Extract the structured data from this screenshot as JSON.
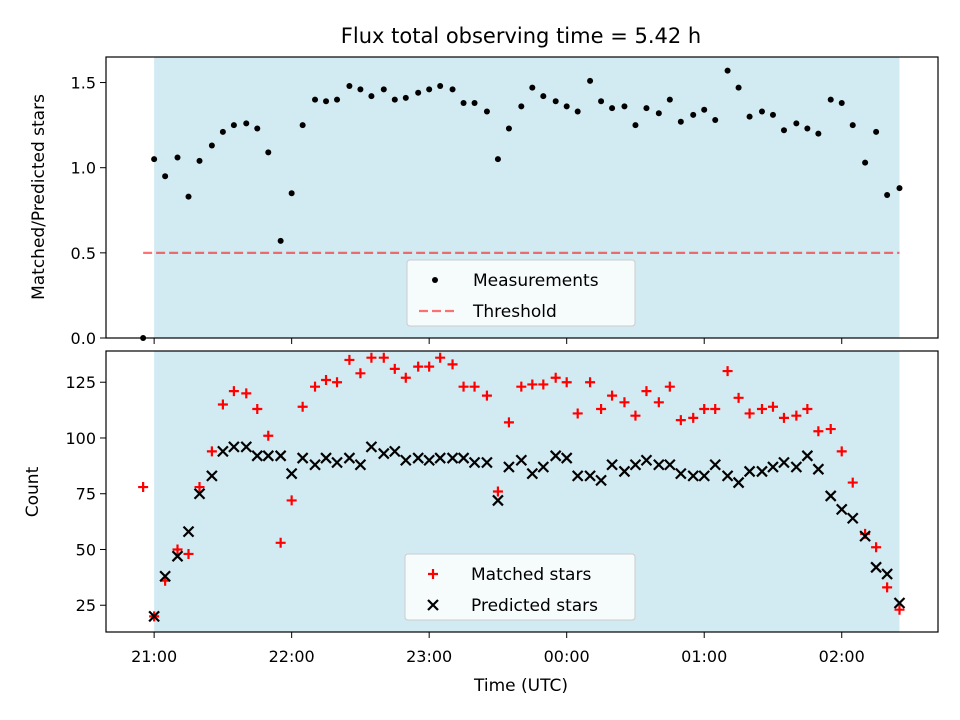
{
  "title": "Flux total observing time = 5.42 h",
  "colors": {
    "shade": "#add8e6",
    "threshold": "#ff0000",
    "matched": "#ff0000",
    "predicted": "#000000",
    "measurements": "#000000"
  },
  "x_axis": {
    "label": "Time (UTC)",
    "ticks": [
      "21:00",
      "22:00",
      "23:00",
      "00:00",
      "01:00",
      "02:00"
    ]
  },
  "chart_data": [
    {
      "type": "scatter",
      "ylabel": "Matched/Predicted stars",
      "xlim": [
        20.65,
        26.7
      ],
      "ylim": [
        0,
        1.65
      ],
      "yticks": [
        "0.0",
        "0.5",
        "1.0",
        "1.5"
      ],
      "shaded_interval": [
        21.0,
        26.42
      ],
      "threshold": {
        "name": "Threshold",
        "value": 0.5,
        "x_range": [
          20.92,
          26.42
        ]
      },
      "legend": {
        "position": "lower center",
        "entries": [
          "Measurements",
          "Threshold"
        ]
      },
      "series": [
        {
          "name": "Measurements",
          "marker": "dot",
          "x": [
            20.92,
            21.0,
            21.08,
            21.17,
            21.25,
            21.33,
            21.42,
            21.5,
            21.58,
            21.67,
            21.75,
            21.83,
            21.92,
            22.0,
            22.08,
            22.17,
            22.25,
            22.33,
            22.42,
            22.5,
            22.58,
            22.67,
            22.75,
            22.83,
            22.92,
            23.0,
            23.08,
            23.17,
            23.25,
            23.33,
            23.42,
            23.5,
            23.58,
            23.67,
            23.75,
            23.83,
            23.92,
            24.0,
            24.08,
            24.17,
            24.25,
            24.33,
            24.42,
            24.5,
            24.58,
            24.67,
            24.75,
            24.83,
            24.92,
            25.0,
            25.08,
            25.17,
            25.25,
            25.33,
            25.42,
            25.5,
            25.58,
            25.67,
            25.75,
            25.83,
            25.92,
            26.0,
            26.08,
            26.17,
            26.25,
            26.33,
            26.42
          ],
          "y": [
            0.0,
            1.05,
            0.95,
            1.06,
            0.83,
            1.04,
            1.13,
            1.21,
            1.25,
            1.26,
            1.23,
            1.09,
            0.57,
            0.85,
            1.25,
            1.4,
            1.39,
            1.4,
            1.48,
            1.46,
            1.42,
            1.46,
            1.4,
            1.41,
            1.44,
            1.46,
            1.48,
            1.46,
            1.38,
            1.38,
            1.33,
            1.05,
            1.23,
            1.36,
            1.47,
            1.42,
            1.39,
            1.36,
            1.33,
            1.51,
            1.39,
            1.35,
            1.36,
            1.25,
            1.35,
            1.32,
            1.4,
            1.27,
            1.31,
            1.34,
            1.28,
            1.57,
            1.47,
            1.3,
            1.33,
            1.31,
            1.22,
            1.26,
            1.23,
            1.2,
            1.4,
            1.38,
            1.25,
            1.03,
            1.21,
            0.84,
            0.88
          ]
        }
      ]
    },
    {
      "type": "scatter",
      "ylabel": "Count",
      "xlim": [
        20.65,
        26.7
      ],
      "ylim": [
        13,
        139
      ],
      "yticks": [
        "25",
        "50",
        "75",
        "100",
        "125"
      ],
      "shaded_interval": [
        21.0,
        26.42
      ],
      "legend": {
        "position": "lower center",
        "entries": [
          "Matched stars",
          "Predicted stars"
        ]
      },
      "series": [
        {
          "name": "Matched stars",
          "marker": "plus",
          "x": [
            20.92,
            21.0,
            21.08,
            21.17,
            21.25,
            21.33,
            21.42,
            21.5,
            21.58,
            21.67,
            21.75,
            21.83,
            21.92,
            22.0,
            22.08,
            22.17,
            22.25,
            22.33,
            22.42,
            22.5,
            22.58,
            22.67,
            22.75,
            22.83,
            22.92,
            23.0,
            23.08,
            23.17,
            23.25,
            23.33,
            23.42,
            23.5,
            23.58,
            23.67,
            23.75,
            23.83,
            23.92,
            24.0,
            24.08,
            24.17,
            24.25,
            24.33,
            24.42,
            24.5,
            24.58,
            24.67,
            24.75,
            24.83,
            24.92,
            25.0,
            25.08,
            25.17,
            25.25,
            25.33,
            25.42,
            25.5,
            25.58,
            25.67,
            25.75,
            25.83,
            25.92,
            26.0,
            26.08,
            26.17,
            26.25,
            26.33,
            26.42
          ],
          "y": [
            78,
            20,
            36,
            50,
            48,
            78,
            94,
            115,
            121,
            120,
            113,
            101,
            53,
            72,
            114,
            123,
            126,
            125,
            135,
            129,
            136,
            136,
            131,
            127,
            132,
            132,
            136,
            133,
            123,
            123,
            119,
            76,
            107,
            123,
            124,
            124,
            127,
            125,
            111,
            125,
            113,
            119,
            116,
            110,
            121,
            116,
            123,
            108,
            109,
            113,
            113,
            130,
            118,
            111,
            113,
            114,
            109,
            110,
            113,
            103,
            104,
            94,
            80,
            57,
            51,
            33,
            23
          ]
        },
        {
          "name": "Predicted stars",
          "marker": "x",
          "x": [
            21.0,
            21.08,
            21.17,
            21.25,
            21.33,
            21.42,
            21.5,
            21.58,
            21.67,
            21.75,
            21.83,
            21.92,
            22.0,
            22.08,
            22.17,
            22.25,
            22.33,
            22.42,
            22.5,
            22.58,
            22.67,
            22.75,
            22.83,
            22.92,
            23.0,
            23.08,
            23.17,
            23.25,
            23.33,
            23.42,
            23.5,
            23.58,
            23.67,
            23.75,
            23.83,
            23.92,
            24.0,
            24.08,
            24.17,
            24.25,
            24.33,
            24.42,
            24.5,
            24.58,
            24.67,
            24.75,
            24.83,
            24.92,
            25.0,
            25.08,
            25.17,
            25.25,
            25.33,
            25.42,
            25.5,
            25.58,
            25.67,
            25.75,
            25.83,
            25.92,
            26.0,
            26.08,
            26.17,
            26.25,
            26.33,
            26.42
          ],
          "y": [
            20,
            38,
            47,
            58,
            75,
            83,
            94,
            96,
            96,
            92,
            92,
            92,
            84,
            91,
            88,
            91,
            89,
            91,
            88,
            96,
            93,
            94,
            90,
            91,
            90,
            91,
            91,
            91,
            89,
            89,
            72,
            87,
            90,
            84,
            87,
            92,
            91,
            83,
            83,
            81,
            88,
            85,
            88,
            90,
            88,
            88,
            84,
            83,
            83,
            88,
            83,
            80,
            85,
            85,
            87,
            89,
            87,
            92,
            86,
            74,
            68,
            64,
            56,
            42,
            39,
            26
          ]
        }
      ]
    }
  ]
}
